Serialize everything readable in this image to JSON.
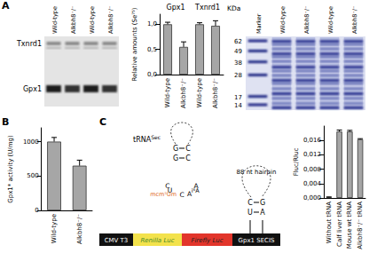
{
  "panel_labels": [
    "A",
    "B",
    "C"
  ],
  "autoradiograph": {
    "lanes": [
      "Wild-type",
      "Alkbh8⁻/⁻",
      "Wild-type",
      "Alkbh8⁻/⁻"
    ],
    "bands": [
      "Txnrd1",
      "Gpx1"
    ]
  },
  "coomassie_gel": {
    "unit": "KDa",
    "lanes": [
      "Marker",
      "Wild-type",
      "Alkbh8⁻/⁻",
      "Wild-type",
      "Alkbh8⁻/⁻"
    ],
    "marker_sizes": [
      62,
      49,
      38,
      28,
      17,
      14
    ]
  },
  "construct": {
    "trna_label": {
      "base": "tRNA",
      "sup": "Sec"
    },
    "stem_pairs": [
      [
        "G",
        "C"
      ],
      [
        "G",
        "C"
      ]
    ],
    "loop": [
      "C",
      "U",
      "mcm⁵Um",
      "C",
      "A",
      "i⁶A",
      "A"
    ],
    "hairpin_label": "88 nt hairpin",
    "hairpin_pairs": [
      [
        "C",
        "G"
      ],
      [
        "U",
        "A"
      ]
    ],
    "segments": [
      {
        "text": "CMV T3",
        "color": "#111111"
      },
      {
        "text": "Renilla Luc",
        "color": "#f3e24c"
      },
      {
        "text": "Firefly Luc",
        "color": "#e2352b"
      },
      {
        "text": "Gpx1 SECIS",
        "color": "#111111"
      }
    ]
  },
  "chart_data": [
    {
      "type": "bar",
      "ylabel": "Relative amounts (Se⁷⁵)",
      "group_labels": [
        "Gpx1",
        "Txnrd1"
      ],
      "categories": [
        "Wild-type",
        "Alkbh8⁻/⁻",
        "Wild-type",
        "Alkbh8⁻/⁻"
      ],
      "values": [
        1.0,
        0.55,
        1.0,
        0.97
      ],
      "errors": [
        0.04,
        0.1,
        0.03,
        0.1
      ],
      "color": "#a6a6a6",
      "ylim": [
        0,
        1.2
      ],
      "yticks": [
        {
          "value": 0,
          "label": "0,0"
        },
        {
          "value": 0.5,
          "label": "0,5"
        },
        {
          "value": 1,
          "label": "1,0"
        }
      ],
      "grid": false
    },
    {
      "type": "bar",
      "ylabel": "Gpx1* activity (U/mg)",
      "categories": [
        "Wild-type",
        "Alkbh8⁻/⁻"
      ],
      "values": [
        1000,
        650
      ],
      "errors": [
        60,
        80
      ],
      "color": "#a6a6a6",
      "ylim": [
        0,
        1200
      ],
      "yticks": [
        0,
        500,
        1000
      ],
      "grid": false
    },
    {
      "type": "bar",
      "ylabel": "Fluc/Rluc",
      "categories": [
        "Without tRNA",
        "Calf liver tRNA",
        "Mouse wt tRNA",
        "Alkbh8⁻/⁻ tRNA"
      ],
      "values": [
        0.0002,
        0.0185,
        0.0185,
        0.0163
      ],
      "errors": [
        0.0001,
        0.0004,
        0.0003,
        0.0002
      ],
      "color": "#a6a6a6",
      "ylim": [
        0,
        0.02
      ],
      "yticks": [
        {
          "value": 0,
          "label": "0,000"
        },
        {
          "value": 0.004,
          "label": "0,004"
        },
        {
          "value": 0.008,
          "label": "0,008"
        },
        {
          "value": 0.012,
          "label": "0,012"
        },
        {
          "value": 0.016,
          "label": "0,016"
        }
      ],
      "grid": false
    }
  ]
}
